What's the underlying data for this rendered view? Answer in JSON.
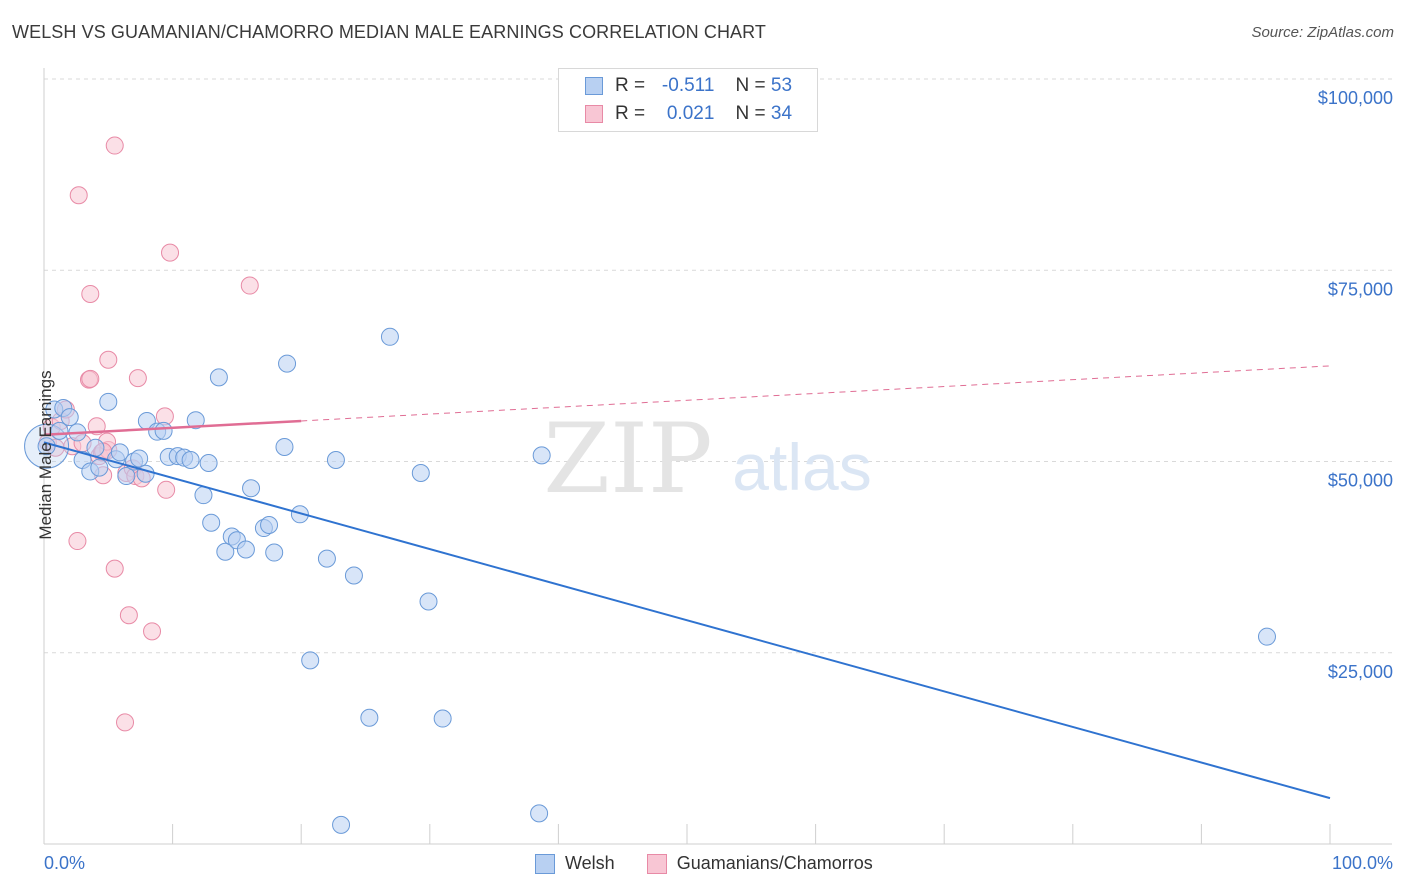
{
  "header": {
    "title": "WELSH VS GUAMANIAN/CHAMORRO MEDIAN MALE EARNINGS CORRELATION CHART",
    "source": "Source: ZipAtlas.com"
  },
  "legend": {
    "rows": [
      {
        "r_label": "R =",
        "r_value": "-0.511",
        "n_label": "N =",
        "n_value": "53"
      },
      {
        "r_label": "R =",
        "r_value": "0.021",
        "n_label": "N =",
        "n_value": "34"
      }
    ]
  },
  "colors": {
    "welsh_fill": "#b8d0f2",
    "welsh_stroke": "#6a9ad8",
    "welsh_line": "#2f73d0",
    "guam_fill": "#f8c6d4",
    "guam_stroke": "#e88aa6",
    "guam_line": "#e06d94",
    "grid": "#d9d9d9",
    "tick_label": "#3b73c9"
  },
  "watermark": {
    "zip": "ZIP",
    "atlas": "atlas"
  },
  "chart_data": {
    "type": "scatter",
    "title": "WELSH VS GUAMANIAN/CHAMORRO MEDIAN MALE EARNINGS CORRELATION CHART",
    "xlabel": "",
    "ylabel": "Median Male Earnings",
    "xlim": [
      0,
      100
    ],
    "ylim": [
      0,
      105000
    ],
    "x_tick_labels": [
      "0.0%",
      "100.0%"
    ],
    "y_ticks": [
      25000,
      50000,
      75000,
      100000
    ],
    "y_tick_labels": [
      "$25,000",
      "$50,000",
      "$75,000",
      "$100,000"
    ],
    "grid": true,
    "series": [
      {
        "name": "Welsh",
        "R": -0.511,
        "N": 53,
        "trend": {
          "x": [
            0,
            100
          ],
          "y": [
            52500,
            6000
          ],
          "style": "solid"
        },
        "points": [
          [
            0.2,
            52000
          ],
          [
            0.8,
            56800
          ],
          [
            1.2,
            54000
          ],
          [
            1.5,
            57000
          ],
          [
            2.0,
            55800
          ],
          [
            2.6,
            53800
          ],
          [
            3.0,
            50200
          ],
          [
            3.6,
            48700
          ],
          [
            4.0,
            51800
          ],
          [
            4.3,
            49200
          ],
          [
            5.0,
            57800
          ],
          [
            5.6,
            50300
          ],
          [
            5.9,
            51200
          ],
          [
            6.4,
            48100
          ],
          [
            7.0,
            50000
          ],
          [
            7.4,
            50400
          ],
          [
            7.9,
            48400
          ],
          [
            8.0,
            55300
          ],
          [
            8.8,
            53900
          ],
          [
            9.3,
            54000
          ],
          [
            9.7,
            50600
          ],
          [
            10.4,
            50700
          ],
          [
            10.9,
            50500
          ],
          [
            11.4,
            50200
          ],
          [
            11.8,
            55400
          ],
          [
            12.4,
            45600
          ],
          [
            12.8,
            49800
          ],
          [
            13.0,
            42000
          ],
          [
            13.6,
            61000
          ],
          [
            14.1,
            38200
          ],
          [
            14.6,
            40200
          ],
          [
            15.0,
            39700
          ],
          [
            15.7,
            38500
          ],
          [
            16.1,
            46500
          ],
          [
            17.1,
            41300
          ],
          [
            17.5,
            41700
          ],
          [
            17.9,
            38100
          ],
          [
            18.7,
            51900
          ],
          [
            18.9,
            62800
          ],
          [
            19.9,
            43100
          ],
          [
            20.7,
            24000
          ],
          [
            22.0,
            37300
          ],
          [
            22.7,
            50200
          ],
          [
            23.1,
            2500
          ],
          [
            24.1,
            35100
          ],
          [
            25.3,
            16500
          ],
          [
            26.9,
            66300
          ],
          [
            29.3,
            48500
          ],
          [
            29.9,
            31700
          ],
          [
            31.0,
            16400
          ],
          [
            38.5,
            4000
          ],
          [
            38.7,
            50800
          ],
          [
            95.1,
            27100
          ]
        ]
      },
      {
        "name": "Guamanians/Chamorros",
        "R": 0.021,
        "N": 34,
        "trend": {
          "x": [
            0,
            100
          ],
          "y": [
            53500,
            62500
          ],
          "solid_until": 20,
          "style": "solid-then-dashed"
        },
        "points": [
          [
            0.3,
            52500
          ],
          [
            0.6,
            54500
          ],
          [
            0.9,
            51800
          ],
          [
            1.3,
            55300
          ],
          [
            1.7,
            56800
          ],
          [
            2.2,
            52000
          ],
          [
            2.6,
            39600
          ],
          [
            2.7,
            84800
          ],
          [
            3.0,
            52400
          ],
          [
            3.5,
            60700
          ],
          [
            3.6,
            60800
          ],
          [
            3.6,
            71900
          ],
          [
            4.1,
            54600
          ],
          [
            4.3,
            50700
          ],
          [
            4.5,
            51200
          ],
          [
            4.6,
            48200
          ],
          [
            5.0,
            51500
          ],
          [
            4.9,
            52600
          ],
          [
            5.0,
            63300
          ],
          [
            5.5,
            36000
          ],
          [
            5.5,
            91300
          ],
          [
            6.4,
            48500
          ],
          [
            6.6,
            29900
          ],
          [
            6.9,
            49100
          ],
          [
            7.1,
            48100
          ],
          [
            7.3,
            60900
          ],
          [
            7.6,
            47800
          ],
          [
            8.4,
            27800
          ],
          [
            9.4,
            55900
          ],
          [
            9.5,
            46300
          ],
          [
            9.8,
            77300
          ],
          [
            6.3,
            15900
          ],
          [
            16.0,
            73000
          ],
          [
            4.6,
            51300
          ]
        ]
      }
    ]
  },
  "bottom_legend": {
    "items": [
      "Welsh",
      "Guamanians/Chamorros"
    ]
  }
}
